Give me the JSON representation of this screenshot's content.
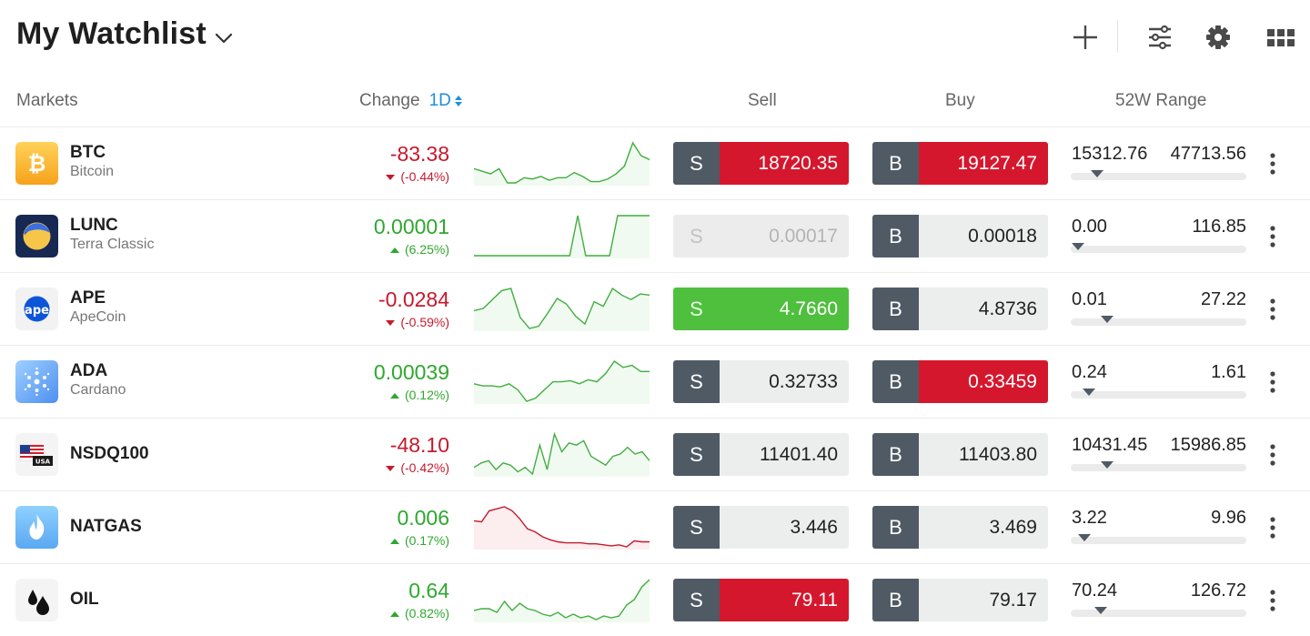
{
  "header": {
    "title": "My Watchlist",
    "icons": [
      "add-icon",
      "filter-sliders-icon",
      "gear-icon",
      "grid-view-icon"
    ]
  },
  "columns": {
    "markets": "Markets",
    "change": "Change",
    "period": "1D",
    "sell": "Sell",
    "buy": "Buy",
    "range": "52W Range"
  },
  "colors": {
    "red": "#d5172d",
    "green": "#4fbf3e",
    "dark": "#4f5a65",
    "accent": "#1a8fe0"
  },
  "rows": [
    {
      "symbol": "BTC",
      "name": "Bitcoin",
      "change": "-83.38",
      "pct": "(-0.44%)",
      "dir": "down",
      "sell_tag": "S",
      "sell": "18720.35",
      "sell_state": "red",
      "buy_tag": "B",
      "buy": "19127.47",
      "buy_state": "red",
      "low": "15312.76",
      "high": "47713.56",
      "range_pos": 0.12,
      "spark": [
        20,
        18,
        16,
        20,
        9,
        9,
        13,
        12,
        14,
        11,
        13,
        13,
        17,
        14,
        10,
        10,
        12,
        16,
        22,
        40,
        30,
        27
      ]
    },
    {
      "symbol": "LUNC",
      "name": "Terra Classic",
      "change": "0.00001",
      "pct": "(6.25%)",
      "dir": "up",
      "sell_tag": "S",
      "sell": "0.00017",
      "sell_state": "dim",
      "buy_tag": "B",
      "buy": "0.00018",
      "buy_state": "normal",
      "low": "0.00",
      "high": "116.85",
      "range_pos": 0.0,
      "spark": [
        2,
        2,
        2,
        2,
        2,
        2,
        2,
        2,
        2,
        2,
        2,
        2,
        2,
        44,
        2,
        2,
        2,
        2,
        44,
        44,
        44,
        44,
        44
      ]
    },
    {
      "symbol": "APE",
      "name": "ApeCoin",
      "change": "-0.0284",
      "pct": "(-0.59%)",
      "dir": "down",
      "sell_tag": "S",
      "sell": "4.7660",
      "sell_state": "green",
      "buy_tag": "B",
      "buy": "4.8736",
      "buy_state": "normal",
      "low": "0.01",
      "high": "27.22",
      "range_pos": 0.18,
      "spark": [
        20,
        22,
        30,
        38,
        40,
        14,
        4,
        6,
        18,
        31,
        26,
        15,
        8,
        28,
        24,
        40,
        34,
        30,
        35,
        34
      ]
    },
    {
      "symbol": "ADA",
      "name": "Cardano",
      "change": "0.00039",
      "pct": "(0.12%)",
      "dir": "up",
      "sell_tag": "S",
      "sell": "0.32733",
      "sell_state": "normal",
      "buy_tag": "B",
      "buy": "0.33459",
      "buy_state": "red",
      "low": "0.24",
      "high": "1.61",
      "range_pos": 0.07,
      "spark": [
        20,
        18,
        18,
        17,
        20,
        14,
        3,
        6,
        14,
        22,
        22,
        23,
        20,
        24,
        22,
        30,
        42,
        36,
        38,
        32,
        32
      ]
    },
    {
      "symbol": "NSDQ100",
      "name": "",
      "change": "-48.10",
      "pct": "(-0.42%)",
      "dir": "down",
      "sell_tag": "S",
      "sell": "11401.40",
      "sell_state": "normal",
      "buy_tag": "B",
      "buy": "11403.80",
      "buy_state": "normal",
      "low": "10431.45",
      "high": "15986.85",
      "range_pos": 0.18,
      "spark": [
        8,
        12,
        14,
        6,
        12,
        10,
        4,
        8,
        2,
        28,
        6,
        38,
        22,
        30,
        28,
        32,
        18,
        14,
        10,
        18,
        20,
        26,
        20,
        22,
        14
      ]
    },
    {
      "symbol": "NATGAS",
      "name": "",
      "change": "0.006",
      "pct": "(0.17%)",
      "dir": "up",
      "sell_tag": "S",
      "sell": "3.446",
      "sell_state": "normal",
      "buy_tag": "B",
      "buy": "3.469",
      "buy_state": "normal",
      "low": "3.22",
      "high": "9.96",
      "range_pos": 0.04,
      "spark": [
        26,
        25,
        36,
        38,
        40,
        36,
        28,
        18,
        15,
        10,
        7,
        5,
        4,
        4,
        4,
        3,
        3,
        2,
        1,
        2,
        0,
        6,
        5,
        5
      ]
    },
    {
      "symbol": "OIL",
      "name": "",
      "change": "0.64",
      "pct": "(0.82%)",
      "dir": "up",
      "sell_tag": "S",
      "sell": "79.11",
      "sell_state": "red",
      "buy_tag": "B",
      "buy": "79.17",
      "buy_state": "normal",
      "low": "70.24",
      "high": "126.72",
      "range_pos": 0.14,
      "spark": [
        12,
        14,
        14,
        10,
        22,
        12,
        20,
        14,
        12,
        8,
        6,
        10,
        4,
        8,
        4,
        6,
        2,
        6,
        4,
        6,
        18,
        24,
        38,
        46
      ]
    }
  ]
}
